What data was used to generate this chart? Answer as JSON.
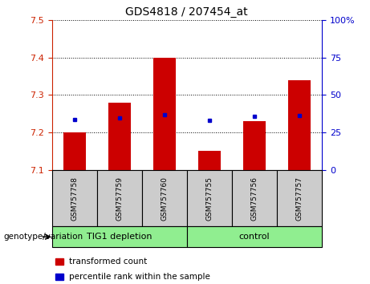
{
  "title": "GDS4818 / 207454_at",
  "samples": [
    "GSM757758",
    "GSM757759",
    "GSM757760",
    "GSM757755",
    "GSM757756",
    "GSM757757"
  ],
  "red_values": [
    7.2,
    7.28,
    7.4,
    7.15,
    7.23,
    7.34
  ],
  "blue_values": [
    7.235,
    7.238,
    7.248,
    7.233,
    7.242,
    7.245
  ],
  "ylim": [
    7.1,
    7.5
  ],
  "y2lim": [
    0,
    100
  ],
  "yticks": [
    7.1,
    7.2,
    7.3,
    7.4,
    7.5
  ],
  "y2ticks": [
    0,
    25,
    50,
    75,
    100
  ],
  "y2ticklabels": [
    "0",
    "25",
    "50",
    "75",
    "100%"
  ],
  "groups": [
    {
      "label": "TIG1 depletion",
      "indices": [
        0,
        1,
        2
      ],
      "color": "#90EE90"
    },
    {
      "label": "control",
      "indices": [
        3,
        4,
        5
      ],
      "color": "#90EE90"
    }
  ],
  "bar_color": "#CC0000",
  "dot_color": "#0000CC",
  "bar_width": 0.5,
  "base": 7.1,
  "genotype_label": "genotype/variation",
  "legend_items": [
    {
      "label": "transformed count",
      "color": "#CC0000"
    },
    {
      "label": "percentile rank within the sample",
      "color": "#0000CC"
    }
  ],
  "left_tick_color": "#CC2200",
  "right_tick_color": "#0000CC",
  "sample_box_color": "#CCCCCC",
  "fig_width": 4.61,
  "fig_height": 3.54
}
